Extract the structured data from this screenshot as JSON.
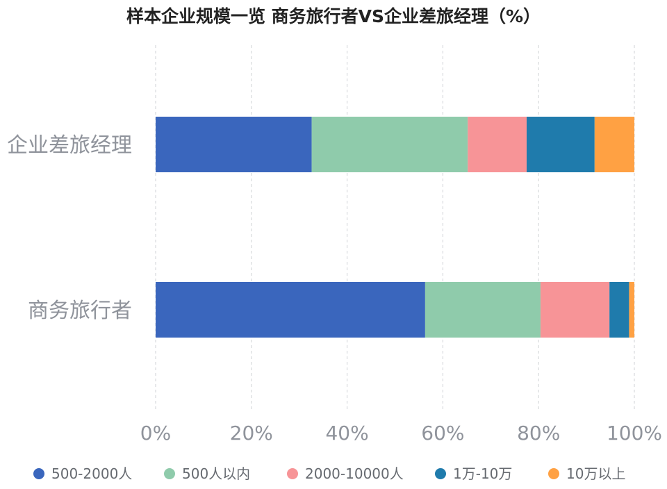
{
  "chart_data": {
    "type": "bar",
    "orientation": "horizontal",
    "stacked": true,
    "title": "样本企业规模一览 商务旅行者VS企业差旅经理（%）",
    "categories": [
      "企业差旅经理",
      "商务旅行者"
    ],
    "series": [
      {
        "name": "500-2000人",
        "color": "#3a66bd",
        "values": [
          32.6,
          56.3
        ]
      },
      {
        "name": "500人以内",
        "color": "#8fcbab",
        "values": [
          32.6,
          24.1
        ]
      },
      {
        "name": "2000-10000人",
        "color": "#f79497",
        "values": [
          12.3,
          14.4
        ]
      },
      {
        "name": "1万-10万",
        "color": "#1f7bac",
        "values": [
          14.2,
          4.1
        ]
      },
      {
        "name": "10万以上",
        "color": "#ffa143",
        "values": [
          8.3,
          1.1
        ]
      }
    ],
    "xlim": [
      0,
      100
    ],
    "xticks": [
      "0%",
      "20%",
      "40%",
      "60%",
      "80%",
      "100%"
    ],
    "grid": "vertical dashed",
    "legend": "bottom"
  }
}
